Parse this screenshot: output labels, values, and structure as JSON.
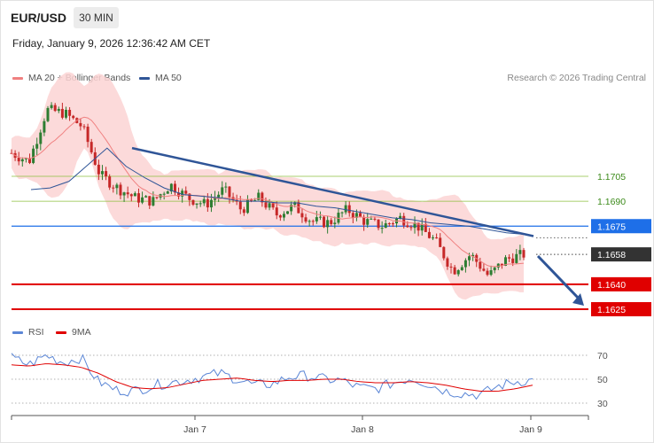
{
  "header": {
    "symbol": "EUR/USD",
    "timeframe": "30 MIN",
    "timestamp": "Friday, January 9, 2026 12:36:42 AM CET"
  },
  "legend": {
    "ma20": {
      "label": "MA 20 + Bollinger Bands",
      "color": "#f08080"
    },
    "ma50": {
      "label": "MA 50",
      "color": "#2f5597"
    },
    "credit": "Research © 2026 Trading Central"
  },
  "rsi_legend": {
    "rsi": {
      "label": "RSI",
      "color": "#5b86d6"
    },
    "ma": {
      "label": "9MA",
      "color": "#e00000"
    }
  },
  "colors": {
    "candle_up": "#2e7d32",
    "candle_down": "#c62828",
    "bollinger_fill": "#fbd3d3",
    "green_level": "#8cbf3f",
    "blue_level": "#1e6fe8",
    "red_level": "#e00000",
    "trendline": "#2f5597",
    "current_price_bg": "#333333"
  },
  "chart_data": {
    "type": "candlestick",
    "x_ticks": [
      "Jan 7",
      "Jan 8",
      "Jan 9"
    ],
    "price_levels": [
      {
        "value": 1.1705,
        "label": "1.1705",
        "style": "green-line"
      },
      {
        "value": 1.169,
        "label": "1.1690",
        "style": "green-line"
      },
      {
        "value": 1.1675,
        "label": "1.1675",
        "style": "blue-line"
      },
      {
        "value": 1.164,
        "label": "1.1640",
        "style": "red-line"
      },
      {
        "value": 1.1625,
        "label": "1.1625",
        "style": "red-line"
      }
    ],
    "current_price": {
      "value": 1.1658,
      "label": "1.1658"
    },
    "close_path": [
      1.1719,
      1.1714,
      1.1745,
      1.1743,
      1.1735,
      1.1706,
      1.1698,
      1.1692,
      1.169,
      1.17,
      1.1692,
      1.1688,
      1.1697,
      1.1685,
      1.1692,
      1.1682,
      1.1687,
      1.1678,
      1.1677,
      1.1685,
      1.1678,
      1.1675,
      1.168,
      1.1675,
      1.1666,
      1.1648,
      1.1658,
      1.1645,
      1.1655,
      1.1658
    ],
    "ma50_path": [
      1.1697,
      1.1698,
      1.1702,
      1.1712,
      1.1722,
      1.1711,
      1.1704,
      1.1698,
      1.1694,
      1.1693,
      1.1692,
      1.169,
      1.169,
      1.1689,
      1.1689,
      1.1687,
      1.1686,
      1.1684,
      1.1682,
      1.168,
      1.1679,
      1.1677,
      1.1676,
      1.1675,
      1.1673,
      1.1671,
      1.167
    ],
    "trendline": {
      "from": 1.1722,
      "to": 1.1669,
      "slope": "down"
    },
    "projection": {
      "direction": "down",
      "target": 1.1625
    },
    "rsi": {
      "levels": [
        70,
        50,
        30
      ],
      "level_labels": [
        "70",
        "50",
        "30"
      ],
      "rsi_path": [
        68,
        62,
        70,
        64,
        68,
        48,
        41,
        40,
        44,
        47,
        49,
        52,
        55,
        50,
        45,
        46,
        52,
        53,
        50,
        49,
        43,
        42,
        47,
        51,
        46,
        40,
        38,
        37,
        44,
        48,
        49
      ],
      "ma_path": [
        62,
        61,
        63,
        62,
        60,
        55,
        48,
        43,
        42,
        43,
        46,
        49,
        50,
        51,
        49,
        48,
        49,
        49,
        50,
        50,
        48,
        47,
        47,
        48,
        47,
        45,
        42,
        40,
        40,
        42,
        45
      ]
    }
  }
}
